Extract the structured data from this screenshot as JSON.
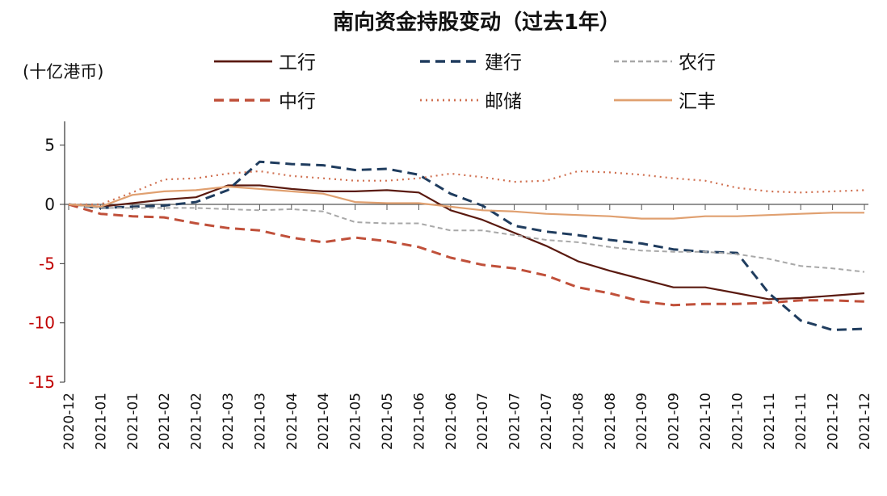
{
  "chart_data": {
    "type": "line",
    "title": "南向资金持股变动（过去1年）",
    "ylabel": "(十亿港币)",
    "xlabel": "",
    "ylim": [
      -15,
      7
    ],
    "yticks": [
      5,
      0,
      -5,
      -10,
      -15
    ],
    "ytick_colors": {
      "positive": "#111111",
      "negative": "#c00000"
    },
    "grid": false,
    "legend_placement": "top",
    "categories": [
      "2020-12",
      "2021-01",
      "2021-01",
      "2021-02",
      "2021-02",
      "2021-03",
      "2021-03",
      "2021-04",
      "2021-04",
      "2021-05",
      "2021-05",
      "2021-06",
      "2021-06",
      "2021-07",
      "2021-07",
      "2021-07",
      "2021-08",
      "2021-08",
      "2021-09",
      "2021-09",
      "2021-10",
      "2021-10",
      "2021-11",
      "2021-11",
      "2021-12",
      "2021-12"
    ],
    "series": [
      {
        "name": "工行",
        "color": "#5a1a10",
        "style": "solid",
        "values": [
          0,
          -0.2,
          0.1,
          0.4,
          0.6,
          1.6,
          1.6,
          1.3,
          1.1,
          1.1,
          1.2,
          1.0,
          -0.5,
          -1.3,
          -2.4,
          -3.5,
          -4.8,
          -5.6,
          -6.3,
          -7.0,
          -7.0,
          -7.5,
          -8.0,
          -7.9,
          -7.7,
          -7.5
        ]
      },
      {
        "name": "建行",
        "color": "#1f3c5e",
        "style": "dash",
        "values": [
          0,
          -0.3,
          -0.2,
          -0.1,
          0.2,
          1.2,
          3.6,
          3.4,
          3.3,
          2.9,
          3.0,
          2.5,
          0.9,
          -0.1,
          -1.8,
          -2.3,
          -2.6,
          -3.0,
          -3.3,
          -3.8,
          -4.0,
          -4.1,
          -7.5,
          -9.8,
          -10.6,
          -10.5
        ]
      },
      {
        "name": "农行",
        "color": "#a8a8a8",
        "style": "shortdash",
        "values": [
          0,
          -0.3,
          -0.3,
          -0.3,
          -0.3,
          -0.4,
          -0.5,
          -0.4,
          -0.6,
          -1.5,
          -1.6,
          -1.6,
          -2.2,
          -2.2,
          -2.6,
          -3.0,
          -3.2,
          -3.6,
          -3.9,
          -4.0,
          -4.0,
          -4.2,
          -4.6,
          -5.2,
          -5.4,
          -5.7
        ]
      },
      {
        "name": "中行",
        "color": "#c0503a",
        "style": "dash",
        "values": [
          0,
          -0.8,
          -1.0,
          -1.1,
          -1.6,
          -2.0,
          -2.2,
          -2.8,
          -3.2,
          -2.8,
          -3.1,
          -3.6,
          -4.5,
          -5.1,
          -5.4,
          -6.0,
          -7.0,
          -7.5,
          -8.2,
          -8.5,
          -8.4,
          -8.4,
          -8.3,
          -8.1,
          -8.1,
          -8.2
        ]
      },
      {
        "name": "邮储",
        "color": "#d07050",
        "style": "dot",
        "values": [
          0,
          0,
          1.0,
          2.1,
          2.2,
          2.6,
          2.8,
          2.4,
          2.2,
          2.0,
          2.0,
          2.2,
          2.6,
          2.3,
          1.9,
          2.0,
          2.8,
          2.7,
          2.5,
          2.2,
          2.0,
          1.4,
          1.1,
          1.0,
          1.1,
          1.2
        ]
      },
      {
        "name": "汇丰",
        "color": "#e0a070",
        "style": "solid",
        "values": [
          0,
          -0.2,
          0.8,
          1.1,
          1.2,
          1.5,
          1.3,
          1.1,
          0.9,
          0.2,
          0.1,
          0.1,
          -0.2,
          -0.5,
          -0.6,
          -0.8,
          -0.9,
          -1.0,
          -1.2,
          -1.2,
          -1.0,
          -1.0,
          -0.9,
          -0.8,
          -0.7,
          -0.7
        ]
      }
    ]
  }
}
